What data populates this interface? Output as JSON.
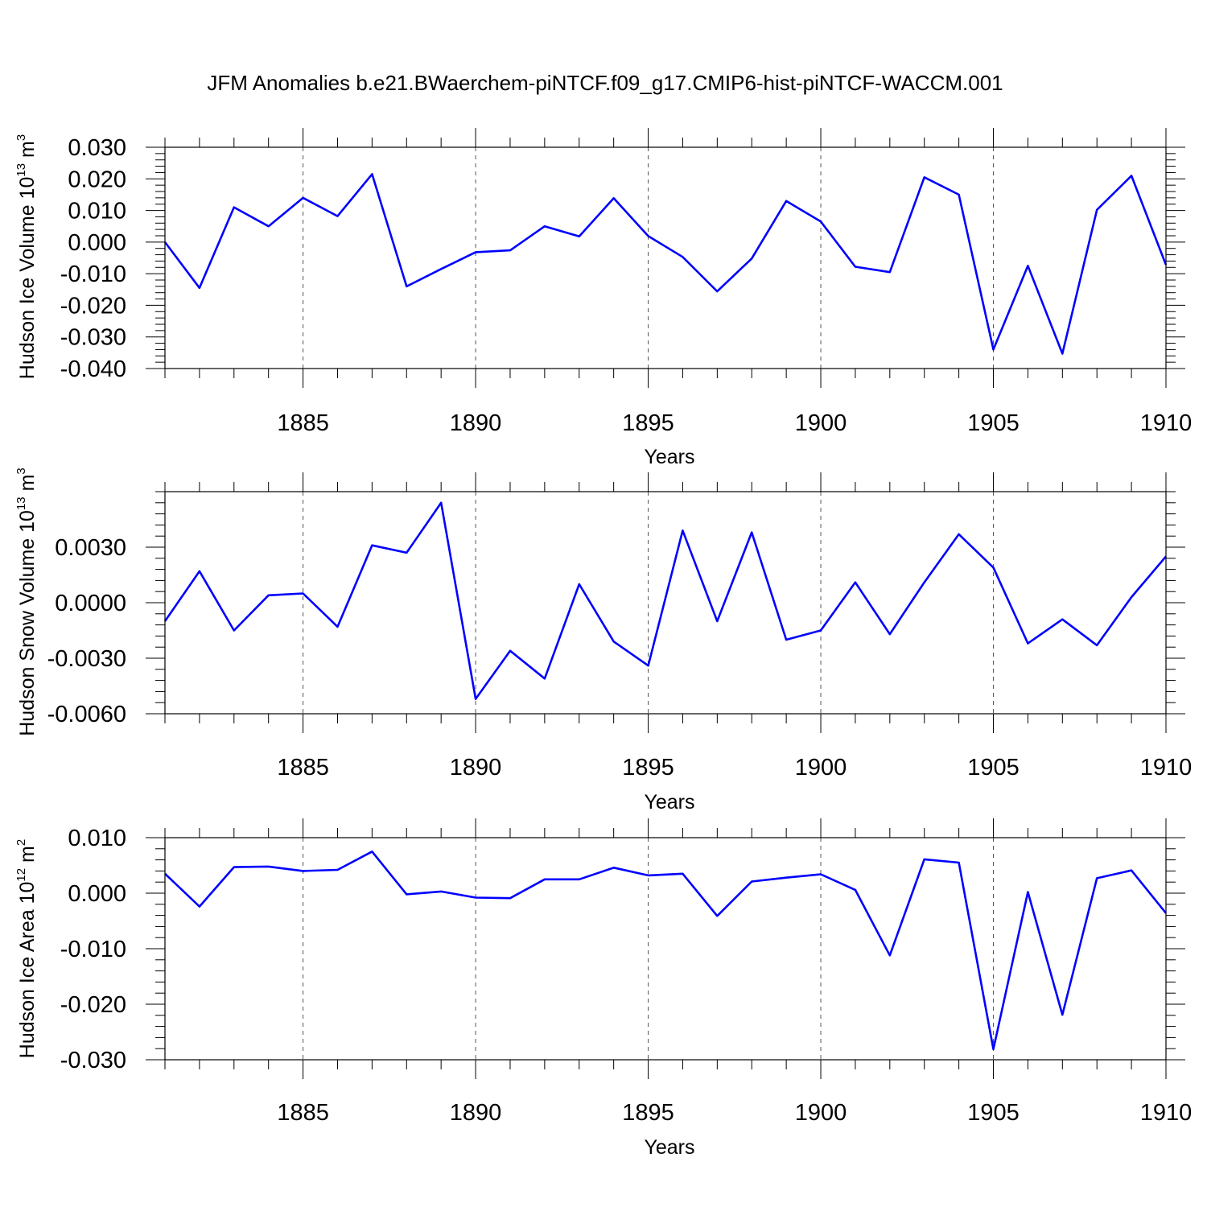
{
  "title": "JFM Anomalies b.e21.BWaerchem-piNTCF.f09_g17.CMIP6-hist-piNTCF-WACCM.001",
  "colors": {
    "line": "#0000ff",
    "axis": "#000000",
    "grid": "#555555"
  },
  "chart_data": [
    {
      "type": "line",
      "ylabel": "Hudson Ice Volume 10",
      "ylabel_exponent": "13",
      "ylabel_unit": " m",
      "ylabel_unit_exponent": "3",
      "xlabel": "Years",
      "xlim": [
        1881,
        1910
      ],
      "ylim": [
        -0.04,
        0.03
      ],
      "x_ticks": [
        1885,
        1890,
        1895,
        1900,
        1905,
        1910
      ],
      "y_ticks": [
        0.03,
        0.02,
        0.01,
        0.0,
        -0.01,
        -0.02,
        -0.03,
        -0.04
      ],
      "y_tick_labels": [
        "0.030",
        "0.020",
        "0.010",
        "0.000",
        "-0.010",
        "-0.020",
        "-0.030",
        "-0.040"
      ],
      "grid_x": true,
      "series": [
        {
          "name": "Hudson Ice Volume",
          "x": [
            1881,
            1882,
            1883,
            1884,
            1885,
            1886,
            1887,
            1888,
            1889,
            1890,
            1891,
            1892,
            1893,
            1894,
            1895,
            1896,
            1897,
            1898,
            1899,
            1900,
            1901,
            1902,
            1903,
            1904,
            1905,
            1906,
            1907,
            1908,
            1909,
            1910
          ],
          "values": [
            0.0,
            -0.0145,
            0.011,
            0.005,
            0.014,
            0.0082,
            0.0215,
            -0.014,
            -0.0085,
            -0.0032,
            -0.0026,
            0.005,
            0.0018,
            0.0139,
            0.0019,
            -0.0047,
            -0.0156,
            -0.0052,
            0.013,
            0.0065,
            -0.0078,
            -0.0095,
            0.0205,
            0.015,
            -0.034,
            -0.0075,
            -0.0353,
            0.0102,
            0.021,
            -0.0072
          ]
        }
      ]
    },
    {
      "type": "line",
      "ylabel": "Hudson Snow Volume 10",
      "ylabel_exponent": "13",
      "ylabel_unit": " m",
      "ylabel_unit_exponent": "3",
      "xlabel": "Years",
      "xlim": [
        1881,
        1910
      ],
      "ylim": [
        -0.006,
        0.006
      ],
      "x_ticks": [
        1885,
        1890,
        1895,
        1900,
        1905,
        1910
      ],
      "y_ticks": [
        0.003,
        0.0,
        -0.003,
        -0.006
      ],
      "y_tick_labels": [
        "0.0030",
        "0.0000",
        "-0.0030",
        "-0.0060"
      ],
      "grid_x": true,
      "series": [
        {
          "name": "Hudson Snow Volume",
          "x": [
            1881,
            1882,
            1883,
            1884,
            1885,
            1886,
            1887,
            1888,
            1889,
            1890,
            1891,
            1892,
            1893,
            1894,
            1895,
            1896,
            1897,
            1898,
            1899,
            1900,
            1901,
            1902,
            1903,
            1904,
            1905,
            1906,
            1907,
            1908,
            1909,
            1910
          ],
          "values": [
            -0.001,
            0.0017,
            -0.0015,
            0.0004,
            0.0005,
            -0.0013,
            0.0031,
            0.0027,
            0.0054,
            -0.0052,
            -0.0026,
            -0.0041,
            0.001,
            -0.0021,
            -0.0034,
            0.0039,
            -0.001,
            0.0038,
            -0.002,
            -0.0015,
            0.0011,
            -0.0017,
            0.0011,
            0.0037,
            0.0019,
            -0.0022,
            -0.0009,
            -0.0023,
            0.0003,
            0.0025
          ]
        }
      ]
    },
    {
      "type": "line",
      "ylabel": "Hudson Ice Area 10",
      "ylabel_exponent": "12",
      "ylabel_unit": " m",
      "ylabel_unit_exponent": "2",
      "xlabel": "Years",
      "xlim": [
        1881,
        1910
      ],
      "ylim": [
        -0.03,
        0.01
      ],
      "x_ticks": [
        1885,
        1890,
        1895,
        1900,
        1905,
        1910
      ],
      "y_ticks": [
        0.01,
        0.0,
        -0.01,
        -0.02,
        -0.03
      ],
      "y_tick_labels": [
        "0.010",
        "0.000",
        "-0.010",
        "-0.020",
        "-0.030"
      ],
      "grid_x": true,
      "series": [
        {
          "name": "Hudson Ice Area",
          "x": [
            1881,
            1882,
            1883,
            1884,
            1885,
            1886,
            1887,
            1888,
            1889,
            1890,
            1891,
            1892,
            1893,
            1894,
            1895,
            1896,
            1897,
            1898,
            1899,
            1900,
            1901,
            1902,
            1903,
            1904,
            1905,
            1906,
            1907,
            1908,
            1909,
            1910
          ],
          "values": [
            0.0035,
            -0.0024,
            0.0047,
            0.0048,
            0.004,
            0.0042,
            0.0075,
            -0.0002,
            0.0003,
            -0.0008,
            -0.0009,
            0.0025,
            0.0025,
            0.0046,
            0.0032,
            0.0035,
            -0.0041,
            0.0021,
            0.0028,
            0.0034,
            0.0006,
            -0.0112,
            0.0061,
            0.0055,
            -0.0281,
            0.0002,
            -0.0219,
            0.0027,
            0.0041,
            -0.0036
          ]
        }
      ]
    }
  ]
}
